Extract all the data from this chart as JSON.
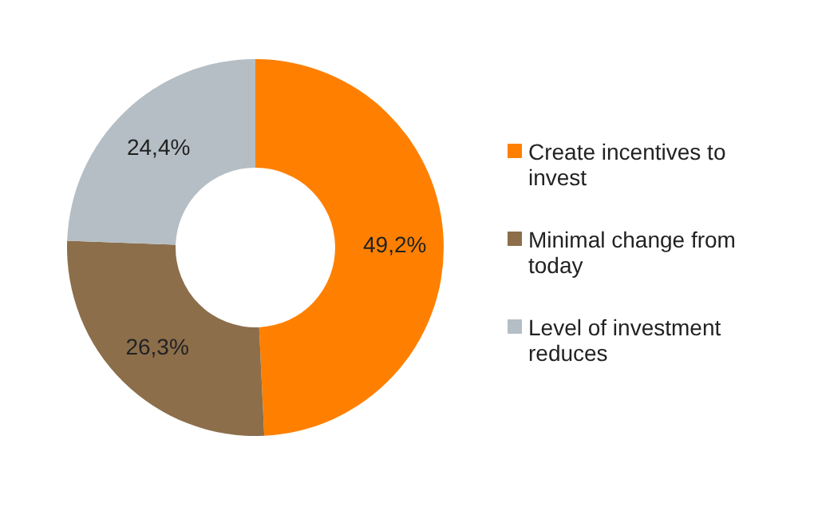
{
  "chart_data": {
    "type": "donut",
    "categories": [
      "Create incentives to invest",
      "Minimal change from today",
      "Level of investment reduces"
    ],
    "values": [
      49.2,
      26.3,
      24.4
    ],
    "colors": [
      "#ff8000",
      "#8c6e4b",
      "#b4bec4"
    ],
    "value_labels": [
      "49,2%",
      "26,3%",
      "24,4%"
    ],
    "legend": "right"
  }
}
